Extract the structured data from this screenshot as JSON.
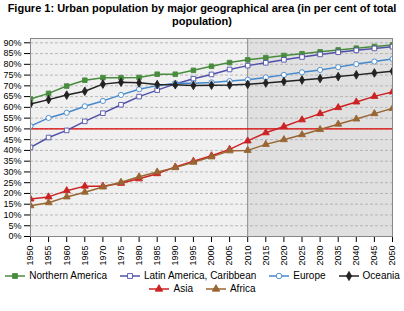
{
  "chart_data": {
    "type": "line",
    "title": "Figure 1: Urban population by major geographical area (in per cent of total population)",
    "x": [
      1950,
      1955,
      1960,
      1965,
      1970,
      1975,
      1980,
      1985,
      1990,
      1995,
      2000,
      2005,
      2010,
      2015,
      2020,
      2025,
      2030,
      2035,
      2040,
      2045,
      2050
    ],
    "series": [
      {
        "name": "Northern America",
        "color": "#4a8c3f",
        "marker": "square",
        "values": [
          63.9,
          66.5,
          69.9,
          72.6,
          73.8,
          73.8,
          73.9,
          75.4,
          75.4,
          77.2,
          79.1,
          80.8,
          82.1,
          83.1,
          84.1,
          84.9,
          85.8,
          86.7,
          87.5,
          88.3,
          89.0
        ]
      },
      {
        "name": "Latin America, Caribbean",
        "color": "#5050aa",
        "marker": "open square",
        "values": [
          41.4,
          46.0,
          49.3,
          53.5,
          57.3,
          61.2,
          65.0,
          68.0,
          70.9,
          73.3,
          75.3,
          77.6,
          79.4,
          80.7,
          82.1,
          83.4,
          84.6,
          85.6,
          86.5,
          87.4,
          88.2
        ]
      },
      {
        "name": "Europe",
        "color": "#4488cc",
        "marker": "open circle",
        "values": [
          51.3,
          55.1,
          57.5,
          60.5,
          63.0,
          65.8,
          68.4,
          70.1,
          71.2,
          71.2,
          71.6,
          72.2,
          72.8,
          73.9,
          75.1,
          76.3,
          77.4,
          78.7,
          80.1,
          81.3,
          82.5
        ]
      },
      {
        "name": "Oceania",
        "color": "#222222",
        "marker": "diamond",
        "values": [
          61.6,
          63.6,
          65.7,
          67.5,
          70.8,
          71.7,
          71.4,
          70.6,
          70.5,
          70.2,
          70.3,
          70.4,
          70.7,
          71.3,
          72.0,
          72.7,
          73.4,
          74.3,
          75.1,
          76.0,
          76.8
        ]
      },
      {
        "name": "Asia",
        "color": "#cc2222",
        "marker": "triangle",
        "values": [
          17.4,
          18.4,
          21.3,
          23.4,
          23.4,
          24.7,
          26.8,
          29.2,
          32.3,
          35.0,
          37.5,
          40.5,
          44.4,
          48.2,
          51.1,
          54.2,
          57.1,
          59.9,
          62.5,
          65.1,
          67.2
        ]
      },
      {
        "name": "Africa",
        "color": "#996633",
        "marker": "triangle",
        "values": [
          14.3,
          15.7,
          18.4,
          20.6,
          23.0,
          25.2,
          27.8,
          30.0,
          32.0,
          34.5,
          37.0,
          39.8,
          40.0,
          42.8,
          45.0,
          47.3,
          49.7,
          52.2,
          54.6,
          57.1,
          59.5
        ]
      }
    ],
    "xlim": [
      1950,
      2050
    ],
    "ylim": [
      0,
      92
    ],
    "xticks": [
      1950,
      1955,
      1960,
      1965,
      1970,
      1975,
      1980,
      1985,
      1990,
      1995,
      2000,
      2005,
      2010,
      2015,
      2020,
      2025,
      2030,
      2035,
      2040,
      2045,
      2050
    ],
    "yticks": [
      {
        "value": 0,
        "label": "0%"
      },
      {
        "value": 5,
        "label": "5%"
      },
      {
        "value": 10,
        "label": "10%"
      },
      {
        "value": 15,
        "label": "15%"
      },
      {
        "value": 20,
        "label": "20%"
      },
      {
        "value": 25,
        "label": "25%"
      },
      {
        "value": 30,
        "label": "30%"
      },
      {
        "value": 35,
        "label": "35%"
      },
      {
        "value": 40,
        "label": "40%"
      },
      {
        "value": 45,
        "label": "45%"
      },
      {
        "value": 50,
        "label": "50%"
      },
      {
        "value": 55,
        "label": "55%"
      },
      {
        "value": 60,
        "label": "60%"
      },
      {
        "value": 65,
        "label": "65%"
      },
      {
        "value": 70,
        "label": "70%"
      },
      {
        "value": 75,
        "label": "75%"
      },
      {
        "value": 80,
        "label": "80%"
      },
      {
        "value": 85,
        "label": "85%"
      },
      {
        "value": 90,
        "label": "90%"
      }
    ],
    "grid": true,
    "legend": "bottom",
    "background_color": "#f0f0f0",
    "divider": {
      "x": 2010,
      "color": "#888888",
      "shade_color": "#e0e0e0"
    },
    "reference_line": {
      "y": 50,
      "color": "#dd0000"
    }
  }
}
